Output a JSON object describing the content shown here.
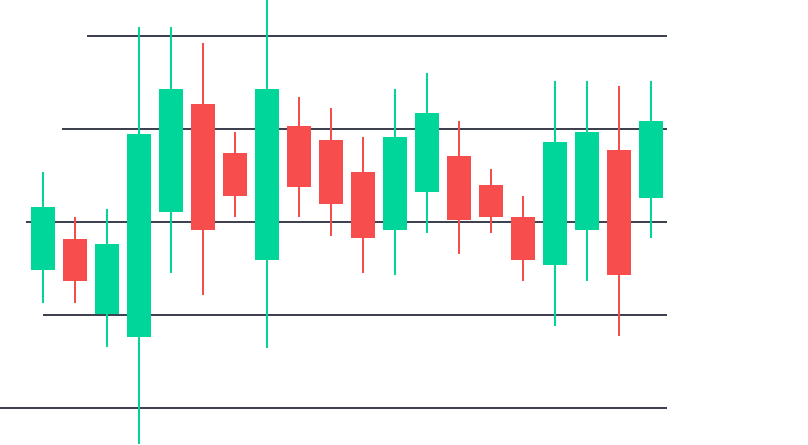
{
  "colors": {
    "up": "#00d699",
    "down": "#f84d4d",
    "grid": "#3d4150",
    "background": "#ffffff"
  },
  "chart_data": {
    "type": "candlestick",
    "title": "",
    "xlabel": "",
    "ylabel": "",
    "grid": true,
    "ylim": [
      0,
      445
    ],
    "gridlines": [
      409,
      316,
      223,
      130,
      37
    ],
    "candles": [
      {
        "open": 175,
        "close": 238,
        "high": 273,
        "low": 142
      },
      {
        "open": 206,
        "close": 164,
        "high": 228,
        "low": 142
      },
      {
        "open": 131,
        "close": 201,
        "high": 236,
        "low": 98
      },
      {
        "open": 108,
        "close": 311,
        "high": 418,
        "low": 1
      },
      {
        "open": 233,
        "close": 356,
        "high": 418,
        "low": 172
      },
      {
        "open": 341,
        "close": 215,
        "high": 402,
        "low": 150
      },
      {
        "open": 292,
        "close": 249,
        "high": 313,
        "low": 228
      },
      {
        "open": 185,
        "close": 356,
        "high": 445,
        "low": 97
      },
      {
        "open": 319,
        "close": 258,
        "high": 348,
        "low": 228
      },
      {
        "open": 305,
        "close": 241,
        "high": 337,
        "low": 209
      },
      {
        "open": 273,
        "close": 207,
        "high": 308,
        "low": 172
      },
      {
        "open": 215,
        "close": 308,
        "high": 356,
        "low": 170
      },
      {
        "open": 253,
        "close": 332,
        "high": 372,
        "low": 212
      },
      {
        "open": 289,
        "close": 225,
        "high": 324,
        "low": 191
      },
      {
        "open": 260,
        "close": 228,
        "high": 276,
        "low": 212
      },
      {
        "open": 228,
        "close": 185,
        "high": 249,
        "low": 164
      },
      {
        "open": 180,
        "close": 303,
        "high": 364,
        "low": 119
      },
      {
        "open": 215,
        "close": 313,
        "high": 364,
        "low": 164
      },
      {
        "open": 295,
        "close": 170,
        "high": 359,
        "low": 109
      },
      {
        "open": 247,
        "close": 324,
        "high": 364,
        "low": 207
      }
    ]
  }
}
